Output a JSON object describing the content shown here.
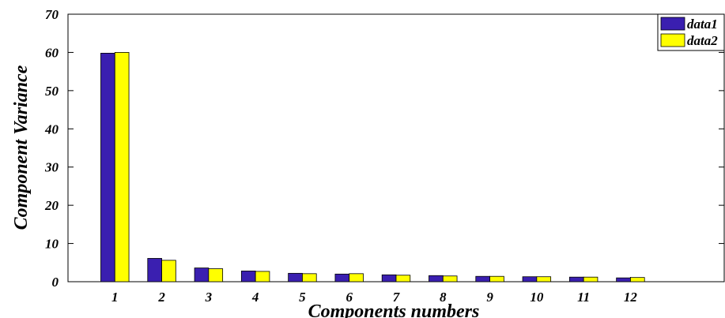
{
  "chart_data": {
    "type": "bar",
    "xlabel": "Components numbers",
    "ylabel": "Component Variance",
    "categories": [
      "1",
      "2",
      "3",
      "4",
      "5",
      "6",
      "7",
      "8",
      "9",
      "10",
      "11",
      "12"
    ],
    "x_range": [
      0,
      14
    ],
    "ylim": [
      0,
      70
    ],
    "yticks": [
      0,
      10,
      20,
      30,
      40,
      50,
      60,
      70
    ],
    "grid": false,
    "legend_position": "top-right",
    "colors": {
      "data1": "#3a1fb0",
      "data2": "#ffff00"
    },
    "series": [
      {
        "name": "data1",
        "values": [
          59.8,
          6.1,
          3.6,
          2.8,
          2.2,
          2.0,
          1.8,
          1.6,
          1.4,
          1.3,
          1.2,
          1.0
        ]
      },
      {
        "name": "data2",
        "values": [
          60.0,
          5.6,
          3.4,
          2.7,
          2.1,
          2.1,
          1.7,
          1.5,
          1.4,
          1.3,
          1.2,
          1.1
        ]
      }
    ]
  }
}
